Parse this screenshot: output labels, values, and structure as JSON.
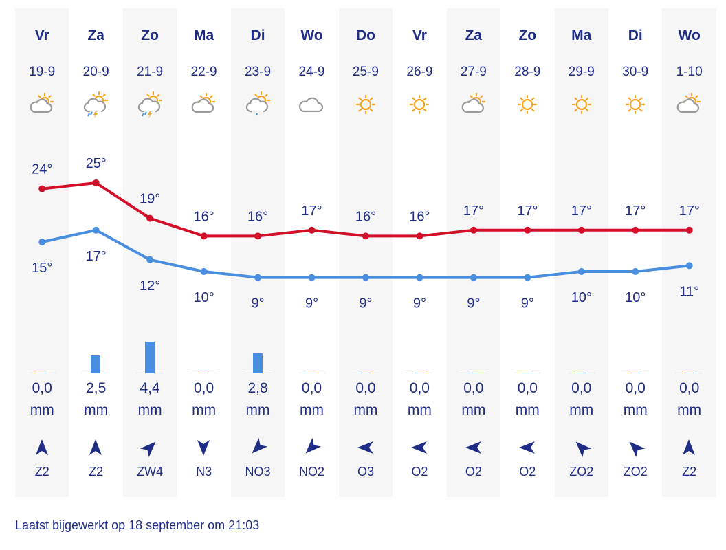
{
  "colors": {
    "text": "#1f2d86",
    "high_line": "#d2102a",
    "low_line": "#4a8fdf",
    "precip_bar": "#4a8fdf",
    "shade": "#f6f6f7"
  },
  "precip_unit": "mm",
  "days": [
    {
      "day": "Vr",
      "date": "19-9",
      "icon": "partly-cloudy",
      "high": 24,
      "low": 15,
      "precip": "0,0",
      "precip_mm": 0,
      "wind": "Z2",
      "wind_from": "Z"
    },
    {
      "day": "Za",
      "date": "20-9",
      "icon": "thunderstorm-partly-sunny",
      "high": 25,
      "low": 17,
      "precip": "2,5",
      "precip_mm": 2.5,
      "wind": "Z2",
      "wind_from": "Z"
    },
    {
      "day": "Zo",
      "date": "21-9",
      "icon": "thunderstorm-partly-sunny",
      "high": 19,
      "low": 12,
      "precip": "4,4",
      "precip_mm": 4.4,
      "wind": "ZW4",
      "wind_from": "ZW"
    },
    {
      "day": "Ma",
      "date": "22-9",
      "icon": "partly-cloudy",
      "high": 16,
      "low": 10,
      "precip": "0,0",
      "precip_mm": 0,
      "wind": "N3",
      "wind_from": "N"
    },
    {
      "day": "Di",
      "date": "23-9",
      "icon": "light-rain-partly-sunny",
      "high": 16,
      "low": 9,
      "precip": "2,8",
      "precip_mm": 2.8,
      "wind": "NO3",
      "wind_from": "NO"
    },
    {
      "day": "Wo",
      "date": "24-9",
      "icon": "cloudy",
      "high": 17,
      "low": 9,
      "precip": "0,0",
      "precip_mm": 0,
      "wind": "NO2",
      "wind_from": "NO"
    },
    {
      "day": "Do",
      "date": "25-9",
      "icon": "sunny",
      "high": 16,
      "low": 9,
      "precip": "0,0",
      "precip_mm": 0,
      "wind": "O3",
      "wind_from": "O"
    },
    {
      "day": "Vr",
      "date": "26-9",
      "icon": "sunny",
      "high": 16,
      "low": 9,
      "precip": "0,0",
      "precip_mm": 0,
      "wind": "O2",
      "wind_from": "O"
    },
    {
      "day": "Za",
      "date": "27-9",
      "icon": "partly-cloudy",
      "high": 17,
      "low": 9,
      "precip": "0,0",
      "precip_mm": 0,
      "wind": "O2",
      "wind_from": "O"
    },
    {
      "day": "Zo",
      "date": "28-9",
      "icon": "sunny",
      "high": 17,
      "low": 9,
      "precip": "0,0",
      "precip_mm": 0,
      "wind": "O2",
      "wind_from": "O"
    },
    {
      "day": "Ma",
      "date": "29-9",
      "icon": "sunny",
      "high": 17,
      "low": 10,
      "precip": "0,0",
      "precip_mm": 0,
      "wind": "ZO2",
      "wind_from": "ZO"
    },
    {
      "day": "Di",
      "date": "30-9",
      "icon": "sunny",
      "high": 17,
      "low": 10,
      "precip": "0,0",
      "precip_mm": 0,
      "wind": "ZO2",
      "wind_from": "ZO"
    },
    {
      "day": "Wo",
      "date": "1-10",
      "icon": "partly-cloudy",
      "high": 17,
      "low": 11,
      "precip": "0,0",
      "precip_mm": 0,
      "wind": "Z2",
      "wind_from": "Z"
    }
  ],
  "footer": "Laatst bijgewerkt op 18 september om 21:03"
}
